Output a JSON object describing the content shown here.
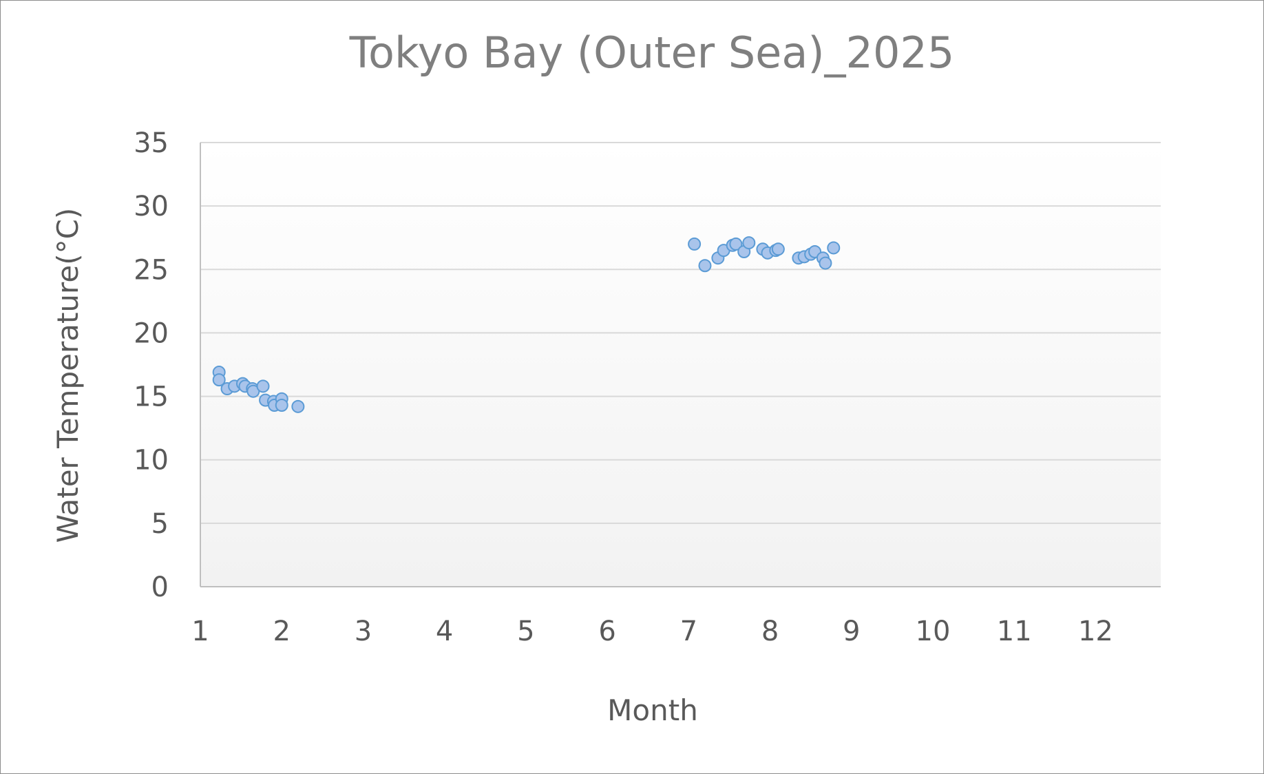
{
  "chart_data": {
    "type": "scatter",
    "title": "Tokyo Bay (Outer Sea)_2025",
    "xlabel": "Month",
    "ylabel": "Water Temperature(°C)",
    "xlim": [
      1,
      12.8
    ],
    "ylim": [
      0,
      35
    ],
    "x_ticks": [
      1,
      2,
      3,
      4,
      5,
      6,
      7,
      8,
      9,
      10,
      11,
      12
    ],
    "y_ticks": [
      0,
      5,
      10,
      15,
      20,
      25,
      30,
      35
    ],
    "grid": true,
    "legend": "none",
    "series": [
      {
        "color": "#a9c4eb",
        "points": [
          {
            "x": 1.23,
            "y": 16.9
          },
          {
            "x": 1.23,
            "y": 16.3
          },
          {
            "x": 1.33,
            "y": 15.6
          },
          {
            "x": 1.42,
            "y": 15.8
          },
          {
            "x": 1.52,
            "y": 16.0
          },
          {
            "x": 1.55,
            "y": 15.8
          },
          {
            "x": 1.64,
            "y": 15.6
          },
          {
            "x": 1.65,
            "y": 15.4
          },
          {
            "x": 1.77,
            "y": 15.8
          },
          {
            "x": 1.8,
            "y": 14.7
          },
          {
            "x": 1.9,
            "y": 14.6
          },
          {
            "x": 1.91,
            "y": 14.3
          },
          {
            "x": 2.0,
            "y": 14.8
          },
          {
            "x": 2.0,
            "y": 14.3
          },
          {
            "x": 2.2,
            "y": 14.2
          },
          {
            "x": 7.07,
            "y": 27.0
          },
          {
            "x": 7.2,
            "y": 25.3
          },
          {
            "x": 7.36,
            "y": 25.9
          },
          {
            "x": 7.43,
            "y": 26.5
          },
          {
            "x": 7.54,
            "y": 26.9
          },
          {
            "x": 7.58,
            "y": 27.0
          },
          {
            "x": 7.68,
            "y": 26.4
          },
          {
            "x": 7.74,
            "y": 27.1
          },
          {
            "x": 7.91,
            "y": 26.6
          },
          {
            "x": 7.97,
            "y": 26.3
          },
          {
            "x": 8.07,
            "y": 26.5
          },
          {
            "x": 8.1,
            "y": 26.6
          },
          {
            "x": 8.35,
            "y": 25.9
          },
          {
            "x": 8.42,
            "y": 26.0
          },
          {
            "x": 8.5,
            "y": 26.2
          },
          {
            "x": 8.55,
            "y": 26.4
          },
          {
            "x": 8.65,
            "y": 25.9
          },
          {
            "x": 8.68,
            "y": 25.5
          },
          {
            "x": 8.78,
            "y": 26.7
          }
        ]
      }
    ]
  }
}
